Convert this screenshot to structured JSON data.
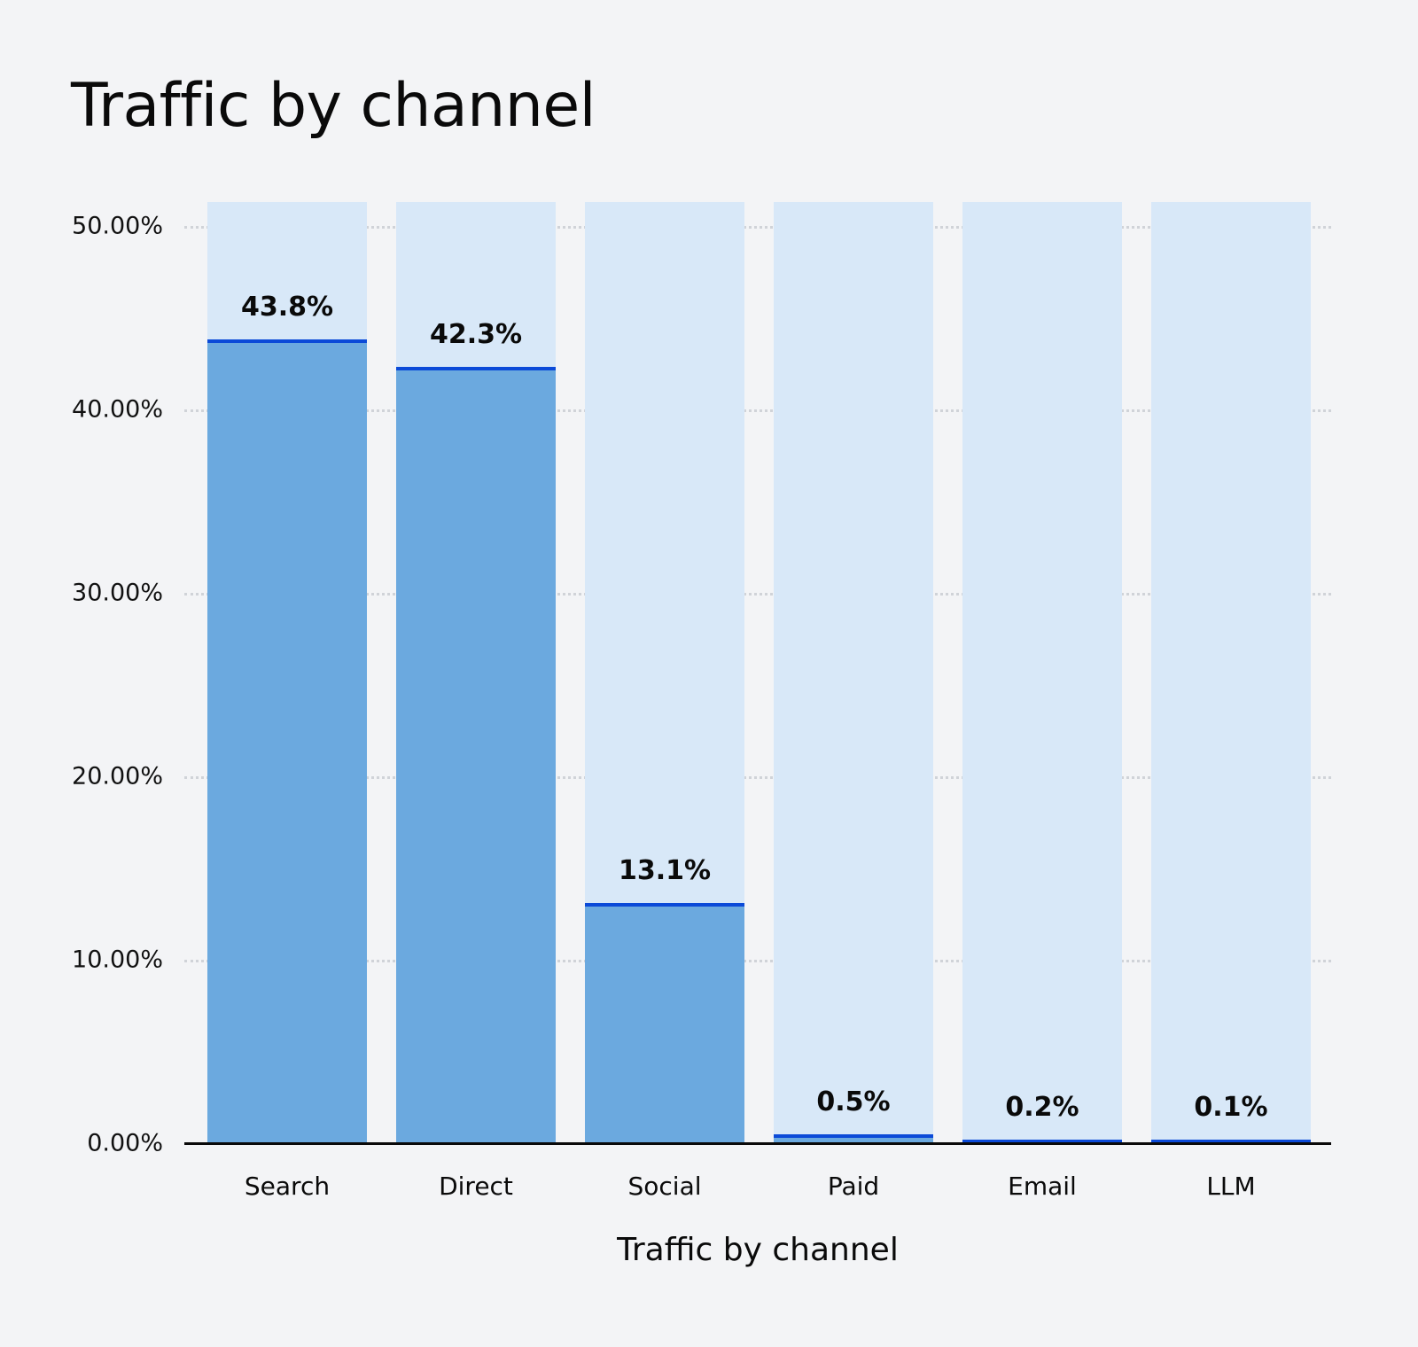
{
  "header": {
    "title": "Traffic by channel"
  },
  "chart_data": {
    "type": "bar",
    "title": "Traffic by channel",
    "xlabel": "Traffic by channel",
    "ylabel": "",
    "categories": [
      "Search",
      "Direct",
      "Social",
      "Paid",
      "Email",
      "LLM"
    ],
    "values": [
      43.8,
      42.3,
      13.1,
      0.5,
      0.2,
      0.1
    ],
    "value_labels": [
      "43.8%",
      "42.3%",
      "13.1%",
      "0.5%",
      "0.2%",
      "0.1%"
    ],
    "ylim": [
      0,
      50
    ],
    "yticks": [
      "0.00%",
      "10.00%",
      "20.00%",
      "30.00%",
      "40.00%",
      "50.00%"
    ],
    "grid": true,
    "legend": null,
    "colors": {
      "bar": "#6ba9df",
      "bar_background": "#d8e8f8",
      "bar_top": "#0b4ad8",
      "background": "#f3f4f6"
    }
  }
}
